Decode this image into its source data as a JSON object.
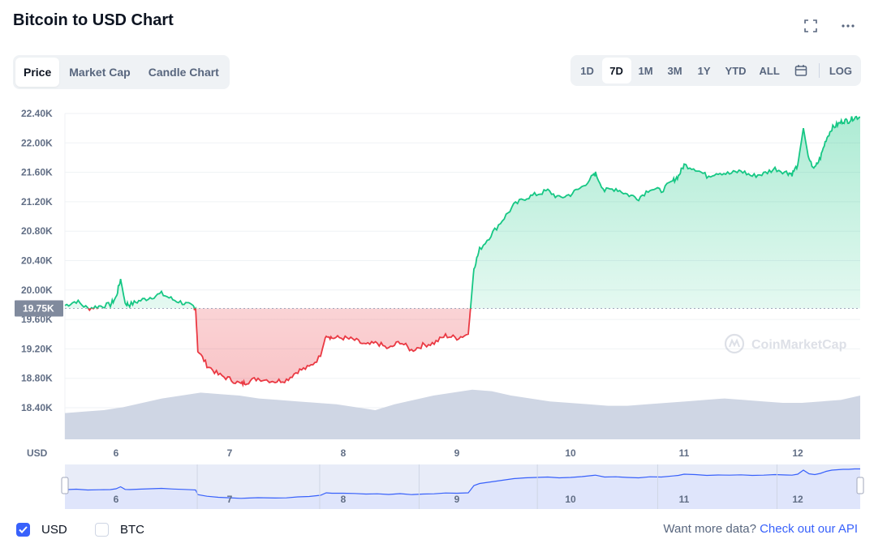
{
  "title": "Bitcoin to USD Chart",
  "icons": {
    "fullscreen": "fullscreen-icon",
    "more": "more-horizontal-icon",
    "calendar": "calendar-icon",
    "logo": "coinmarketcap-logo-icon"
  },
  "tabs": [
    {
      "label": "Price",
      "active": true
    },
    {
      "label": "Market Cap",
      "active": false
    },
    {
      "label": "Candle Chart",
      "active": false
    }
  ],
  "ranges": [
    {
      "label": "1D",
      "active": false
    },
    {
      "label": "7D",
      "active": true
    },
    {
      "label": "1M",
      "active": false
    },
    {
      "label": "3M",
      "active": false
    },
    {
      "label": "1Y",
      "active": false
    },
    {
      "label": "YTD",
      "active": false
    },
    {
      "label": "ALL",
      "active": false
    }
  ],
  "log_label": "LOG",
  "watermark": "CoinMarketCap",
  "colors": {
    "up": "#16c784",
    "down": "#ea3943",
    "volume": "#cfd6e4",
    "navigator_line": "#3861fb",
    "accent": "#3861fb"
  },
  "legend": {
    "usd_label": "USD",
    "btc_label": "BTC",
    "usd_checked": true,
    "btc_checked": false
  },
  "footer": {
    "prompt": "Want more data?",
    "link": "Check out our API"
  },
  "chart_data": {
    "type": "area",
    "currency_label": "USD",
    "baseline": 19750,
    "baseline_label": "19.75K",
    "y_ticks": [
      "22.40K",
      "22.00K",
      "21.60K",
      "21.20K",
      "20.80K",
      "20.40K",
      "20.00K",
      "19.60K",
      "19.20K",
      "18.80K",
      "18.40K"
    ],
    "y_tick_values": [
      22400,
      22000,
      21600,
      21200,
      20800,
      20400,
      20000,
      19600,
      19200,
      18800,
      18400
    ],
    "ylim": [
      18400,
      22400
    ],
    "x_ticks": [
      "6",
      "7",
      "8",
      "9",
      "10",
      "11",
      "12"
    ],
    "x_tick_values": [
      6,
      7,
      8,
      9,
      10,
      11,
      12
    ],
    "xlim": [
      5.55,
      12.55
    ],
    "navigator_ticks": [
      "6",
      "7",
      "8",
      "9",
      "10",
      "11",
      "12"
    ],
    "series": [
      {
        "x": [
          5.55,
          5.65,
          5.75,
          5.85,
          5.95,
          6.0,
          6.04,
          6.08,
          6.12,
          6.2,
          6.3,
          6.4,
          6.5,
          6.6,
          6.68,
          6.7,
          6.72,
          6.8,
          6.9,
          7.0,
          7.1,
          7.15,
          7.25,
          7.4,
          7.5,
          7.6,
          7.7,
          7.8,
          7.85,
          7.9,
          8.0,
          8.1,
          8.2,
          8.3,
          8.4,
          8.5,
          8.6,
          8.7,
          8.8,
          8.9,
          9.0,
          9.1,
          9.12,
          9.15,
          9.2,
          9.3,
          9.4,
          9.5,
          9.6,
          9.7,
          9.8,
          9.9,
          10.0,
          10.1,
          10.2,
          10.22,
          10.3,
          10.4,
          10.5,
          10.6,
          10.7,
          10.8,
          10.9,
          10.95,
          11.0,
          11.1,
          11.2,
          11.3,
          11.4,
          11.5,
          11.6,
          11.7,
          11.8,
          11.9,
          11.95,
          12.0,
          12.05,
          12.1,
          12.15,
          12.2,
          12.25,
          12.3,
          12.35,
          12.4,
          12.45,
          12.5,
          12.55
        ],
        "y": [
          19790,
          19850,
          19750,
          19780,
          19800,
          19900,
          20150,
          19820,
          19800,
          19850,
          19900,
          19950,
          19870,
          19820,
          19770,
          19750,
          19180,
          18980,
          18850,
          18790,
          18720,
          18750,
          18800,
          18760,
          18780,
          18900,
          18950,
          19100,
          19400,
          19350,
          19350,
          19320,
          19250,
          19280,
          19200,
          19300,
          19180,
          19250,
          19280,
          19380,
          19350,
          19400,
          19750,
          20300,
          20550,
          20750,
          20950,
          21150,
          21250,
          21300,
          21350,
          21250,
          21300,
          21400,
          21550,
          21580,
          21350,
          21380,
          21300,
          21250,
          21380,
          21350,
          21480,
          21550,
          21700,
          21650,
          21550,
          21600,
          21580,
          21620,
          21550,
          21580,
          21650,
          21600,
          21580,
          21700,
          22200,
          21750,
          21650,
          21800,
          22050,
          22200,
          22250,
          22300,
          22300,
          22350,
          22350
        ]
      }
    ],
    "volume": [
      0.18,
      0.19,
      0.2,
      0.22,
      0.25,
      0.28,
      0.3,
      0.32,
      0.31,
      0.3,
      0.28,
      0.27,
      0.26,
      0.25,
      0.24,
      0.22,
      0.2,
      0.24,
      0.27,
      0.3,
      0.32,
      0.34,
      0.33,
      0.3,
      0.28,
      0.26,
      0.25,
      0.24,
      0.23,
      0.23,
      0.24,
      0.25,
      0.26,
      0.27,
      0.28,
      0.27,
      0.26,
      0.25,
      0.25,
      0.26,
      0.27,
      0.3
    ]
  }
}
